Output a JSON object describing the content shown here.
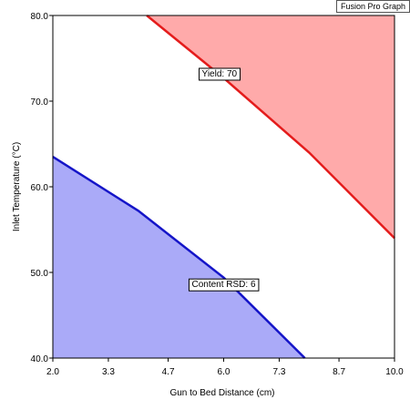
{
  "badge": "Fusion Pro Graph",
  "colors": {
    "yield_line": "#e41c1c",
    "yield_fill": "#ffaaaa",
    "rsd_line": "#1515c8",
    "rsd_fill": "#aaaaf8",
    "axis": "#000000",
    "background": "#ffffff"
  },
  "chart_data": {
    "type": "area",
    "title": "",
    "xlabel": "Gun to Bed Distance (cm)",
    "ylabel": "Inlet Temperature (°C)",
    "xlim": [
      2.0,
      10.0
    ],
    "ylim": [
      40.0,
      80.0
    ],
    "x_ticks": [
      2.0,
      3.3,
      4.7,
      6.0,
      7.3,
      8.7,
      10.0
    ],
    "x_tick_labels": [
      "2.0",
      "3.3",
      "4.7",
      "6.0",
      "7.3",
      "8.7",
      "10.0"
    ],
    "y_ticks": [
      40.0,
      50.0,
      60.0,
      70.0,
      80.0
    ],
    "y_tick_labels": [
      "40.0",
      "50.0",
      "60.0",
      "70.0",
      "80.0"
    ],
    "grid": false,
    "series": [
      {
        "name": "Yield: 70",
        "region": "above",
        "x": [
          4.2,
          6.0,
          8.0,
          10.0
        ],
        "y": [
          80.0,
          72.7,
          64.0,
          54.0
        ]
      },
      {
        "name": "Content RSD: 6",
        "region": "below",
        "x": [
          2.0,
          4.0,
          6.0,
          7.9
        ],
        "y": [
          63.5,
          57.2,
          49.4,
          40.0
        ]
      }
    ],
    "annotations": [
      {
        "text": "Yield: 70",
        "x": 5.9,
        "y": 73.3
      },
      {
        "text": "Content RSD: 6",
        "x": 6.0,
        "y": 48.7
      }
    ]
  }
}
